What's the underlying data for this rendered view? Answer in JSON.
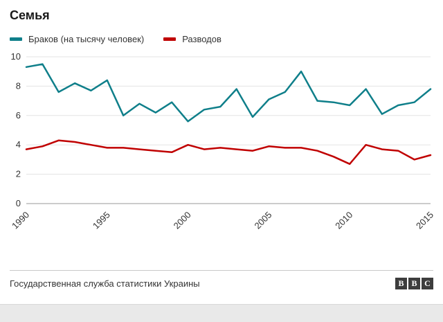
{
  "page": {
    "title": "Семья"
  },
  "footer": {
    "source": "Государственная служба статистики Украины",
    "logo_letters": [
      "B",
      "B",
      "C"
    ]
  },
  "chart_data": {
    "type": "line",
    "title": "Семья",
    "x": [
      1990,
      1991,
      1992,
      1993,
      1994,
      1995,
      1996,
      1997,
      1998,
      1999,
      2000,
      2001,
      2002,
      2003,
      2004,
      2005,
      2006,
      2007,
      2008,
      2009,
      2010,
      2011,
      2012,
      2013,
      2014,
      2015
    ],
    "series": [
      {
        "name": "Браков (на тысячу человек)",
        "color": "#0f7f8a",
        "values": [
          9.3,
          9.5,
          7.6,
          8.2,
          7.7,
          8.4,
          6.0,
          6.8,
          6.2,
          6.9,
          5.6,
          6.4,
          6.6,
          7.8,
          5.9,
          7.1,
          7.6,
          9.0,
          7.0,
          6.9,
          6.7,
          7.8,
          6.1,
          6.7,
          6.9,
          7.8
        ]
      },
      {
        "name": "Разводов",
        "color": "#c00000",
        "values": [
          3.7,
          3.9,
          4.3,
          4.2,
          4.0,
          3.8,
          3.8,
          3.7,
          3.6,
          3.5,
          4.0,
          3.7,
          3.8,
          3.7,
          3.6,
          3.9,
          3.8,
          3.8,
          3.6,
          3.2,
          2.7,
          4.0,
          3.7,
          3.6,
          3.0,
          3.3
        ]
      }
    ],
    "ylim": [
      0,
      10
    ],
    "yticks": [
      0,
      2,
      4,
      6,
      8,
      10
    ],
    "xticks": [
      1990,
      1995,
      2000,
      2005,
      2010,
      2015
    ],
    "grid": true,
    "legend_position": "top"
  }
}
